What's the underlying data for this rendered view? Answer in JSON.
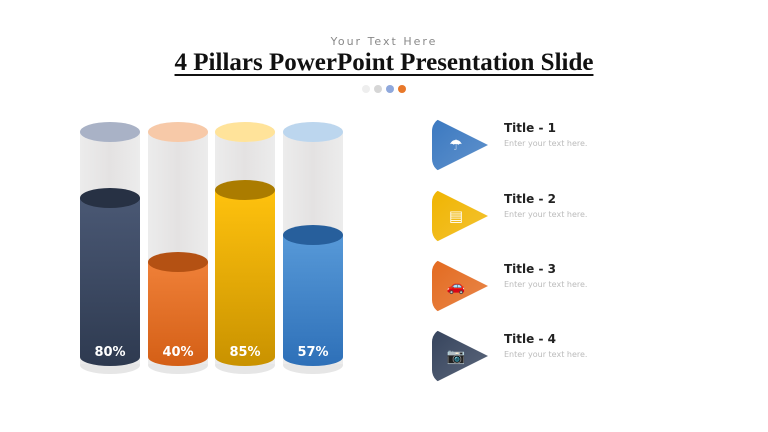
{
  "header": {
    "subtitle": "Your Text Here",
    "title": "4 Pillars PowerPoint Presentation Slide",
    "dots": [
      "#eeeeee",
      "#d6d6d6",
      "#8fa8dc",
      "#e8782a"
    ]
  },
  "pillars": [
    {
      "value": 80,
      "label": "80%",
      "color_top": "#4a5874",
      "color_bottom": "#2e3a50",
      "cap": "#a9b2c6"
    },
    {
      "value": 40,
      "label": "40%",
      "color_top": "#ef8038",
      "color_bottom": "#d45f16",
      "cap": "#f7c9a8"
    },
    {
      "value": 85,
      "label": "85%",
      "color_top": "#ffc20e",
      "color_bottom": "#c99200",
      "cap": "#ffe39a"
    },
    {
      "value": 57,
      "label": "57%",
      "color_top": "#5799d8",
      "color_bottom": "#2e70b8",
      "cap": "#bcd6ee"
    }
  ],
  "items": [
    {
      "title": "Title - 1",
      "desc": "Enter your text here.",
      "icon": "umbrella-icon",
      "glyph": "☂",
      "color": "#3a78c0"
    },
    {
      "title": "Title - 2",
      "desc": "Enter your text here.",
      "icon": "document-icon",
      "glyph": "▤",
      "color": "#f0b400"
    },
    {
      "title": "Title - 3",
      "desc": "Enter your text here.",
      "icon": "car-icon",
      "glyph": "🚗",
      "color": "#e36a1f"
    },
    {
      "title": "Title - 4",
      "desc": "Enter your text here.",
      "icon": "camera-icon",
      "glyph": "📷",
      "color": "#35435c"
    }
  ]
}
